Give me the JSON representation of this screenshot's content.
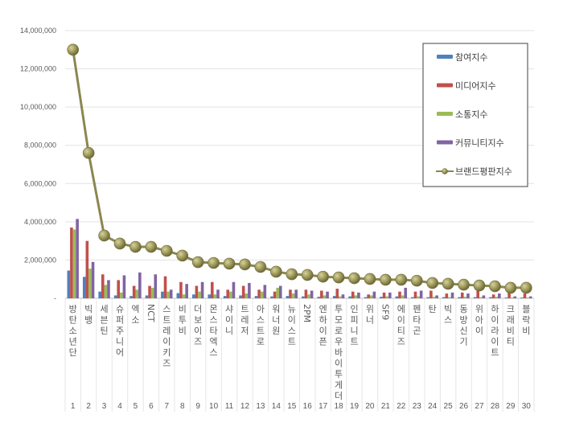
{
  "chart_data": {
    "type": "bar",
    "title": "",
    "xlabel": "",
    "ylabel": "",
    "ylim": [
      0,
      14000000
    ],
    "yticks": [
      0,
      2000000,
      4000000,
      6000000,
      8000000,
      10000000,
      12000000,
      14000000
    ],
    "ytick_labels": [
      "-",
      "2,000,000",
      "4,000,000",
      "6,000,000",
      "8,000,000",
      "10,000,000",
      "12,000,000",
      "14,000,000"
    ],
    "grid": true,
    "legend_position": "upper right (inside)",
    "ranks": [
      "1",
      "2",
      "3",
      "4",
      "5",
      "6",
      "7",
      "8",
      "9",
      "10",
      "11",
      "12",
      "13",
      "14",
      "15",
      "16",
      "17",
      "18",
      "19",
      "20",
      "21",
      "22",
      "23",
      "24",
      "25",
      "26",
      "27",
      "28",
      "29",
      "30"
    ],
    "categories": [
      "방탄소년단",
      "빅뱅",
      "세븐틴",
      "슈퍼주니어",
      "엑소",
      "NCT",
      "스트레이키즈",
      "비투비",
      "더보이즈",
      "몬스타엑스",
      "샤이니",
      "트레저",
      "아스트로",
      "워너원",
      "뉴이스트",
      "2PM",
      "엔하이픈",
      "투모로우바이투게더",
      "인피니트",
      "위너",
      "SF9",
      "에이티즈",
      "펜타곤",
      "탄",
      "빅스",
      "동방신기",
      "위아이",
      "하이라이트",
      "크래비티",
      "블락비"
    ],
    "rotated_latin_labels": [
      "NCT",
      "2PM",
      "SF9"
    ],
    "series": [
      {
        "name": "참여지수",
        "kind": "bar",
        "color": "#4f81bd",
        "values": [
          1450000,
          1120000,
          350000,
          150000,
          120000,
          150000,
          350000,
          270000,
          200000,
          200000,
          120000,
          150000,
          120000,
          100000,
          120000,
          100000,
          80000,
          120000,
          100000,
          60000,
          80000,
          100000,
          60000,
          60000,
          60000,
          60000,
          60000,
          60000,
          40000,
          40000
        ]
      },
      {
        "name": "미디어지수",
        "kind": "bar",
        "color": "#c0504d",
        "values": [
          3700000,
          3000000,
          1250000,
          950000,
          650000,
          650000,
          1150000,
          850000,
          650000,
          850000,
          450000,
          650000,
          450000,
          350000,
          450000,
          450000,
          400000,
          500000,
          350000,
          200000,
          300000,
          350000,
          350000,
          400000,
          250000,
          300000,
          400000,
          200000,
          350000,
          250000
        ]
      },
      {
        "name": "소통지수",
        "kind": "bar",
        "color": "#9bbb59",
        "values": [
          3600000,
          1550000,
          700000,
          300000,
          450000,
          550000,
          350000,
          200000,
          350000,
          200000,
          350000,
          250000,
          350000,
          550000,
          250000,
          200000,
          150000,
          100000,
          150000,
          150000,
          100000,
          150000,
          100000,
          80000,
          60000,
          80000,
          60000,
          80000,
          40000,
          40000
        ]
      },
      {
        "name": "커뮤니티지수",
        "kind": "bar",
        "color": "#8064a2",
        "values": [
          4150000,
          1900000,
          950000,
          1200000,
          1350000,
          1250000,
          450000,
          750000,
          850000,
          450000,
          850000,
          800000,
          700000,
          650000,
          450000,
          400000,
          350000,
          200000,
          300000,
          350000,
          300000,
          550000,
          400000,
          150000,
          300000,
          250000,
          150000,
          250000,
          100000,
          100000
        ]
      },
      {
        "name": "브랜드평판지수",
        "kind": "line",
        "color": "#938953",
        "values": [
          13000000,
          7600000,
          3280000,
          2860000,
          2690000,
          2690000,
          2480000,
          2230000,
          1890000,
          1850000,
          1810000,
          1770000,
          1640000,
          1390000,
          1260000,
          1220000,
          1130000,
          1090000,
          1050000,
          1010000,
          970000,
          970000,
          920000,
          800000,
          760000,
          710000,
          670000,
          630000,
          550000,
          550000
        ]
      }
    ]
  },
  "legend": {
    "items": [
      {
        "label": "참여지수",
        "type": "bar",
        "color": "#4f81bd"
      },
      {
        "label": "미디어지수",
        "type": "bar",
        "color": "#c0504d"
      },
      {
        "label": "소통지수",
        "type": "bar",
        "color": "#9bbb59"
      },
      {
        "label": "커뮤니티지수",
        "type": "bar",
        "color": "#8064a2"
      },
      {
        "label": "브랜드평판지수",
        "type": "line",
        "color": "#938953"
      }
    ]
  },
  "style": {
    "gridline_color": "#e3e3e3",
    "axis_color": "#bfbfbf",
    "text_color": "#595959",
    "marker_fill": "#a09a5a",
    "line_color": "#8c8650"
  }
}
